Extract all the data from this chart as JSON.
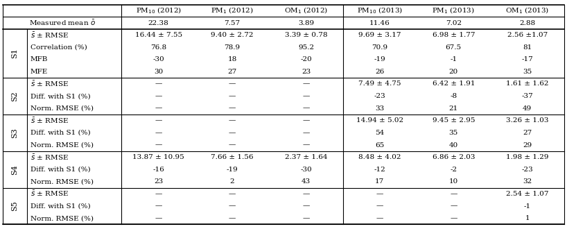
{
  "col_headers": [
    "PM$_{10}$ (2012)",
    "PM$_1$ (2012)",
    "OM$_1$ (2012)",
    "PM$_{10}$ (2013)",
    "PM$_1$ (2013)",
    "OM$_1$ (2013)"
  ],
  "measured_mean_label": "Measured mean $\\bar{o}$",
  "measured_mean_values": [
    "22.38",
    "7.57",
    "3.89",
    "11.46",
    "7.02",
    "2.88"
  ],
  "row_groups": [
    {
      "label": "S1",
      "rows": [
        [
          "$\\bar{s}$ ± RMSE",
          "16.44 ± 7.55",
          "9.40 ± 2.72",
          "3.39 ± 0.78",
          "9.69 ± 3.17",
          "6.98 ± 1.77",
          "2.56 ±1.07"
        ],
        [
          "Correlation (%)",
          "76.8",
          "78.9",
          "95.2",
          "70.9",
          "67.5",
          "81"
        ],
        [
          "MFB",
          "-30",
          "18",
          "-20",
          "-19",
          "-1",
          "-17"
        ],
        [
          "MFE",
          "30",
          "27",
          "23",
          "26",
          "20",
          "35"
        ]
      ]
    },
    {
      "label": "S2",
      "rows": [
        [
          "$\\bar{s}$ ± RMSE",
          "—",
          "—",
          "—",
          "7.49 ± 4.75",
          "6.42 ± 1.91",
          "1.61 ± 1.62"
        ],
        [
          "Diff. with S1 (%)",
          "—",
          "—",
          "—",
          "-23",
          "-8",
          "-37"
        ],
        [
          "Norm. RMSE (%)",
          "—",
          "—",
          "—",
          "33",
          "21",
          "49"
        ]
      ]
    },
    {
      "label": "S3",
      "rows": [
        [
          "$\\bar{s}$ ± RMSE",
          "—",
          "—",
          "—",
          "14.94 ± 5.02",
          "9.45 ± 2.95",
          "3.26 ± 1.03"
        ],
        [
          "Diff. with S1 (%)",
          "—",
          "—",
          "—",
          "54",
          "35",
          "27"
        ],
        [
          "Norm. RMSE (%)",
          "—",
          "—",
          "—",
          "65",
          "40",
          "29"
        ]
      ]
    },
    {
      "label": "S4",
      "rows": [
        [
          "$\\bar{s}$ ± RMSE",
          "13.87 ± 10.95",
          "7.66 ± 1.56",
          "2.37 ± 1.64",
          "8.48 ± 4.02",
          "6.86 ± 2.03",
          "1.98 ± 1.29"
        ],
        [
          "Diff. with S1 (%)",
          "-16",
          "-19",
          "-30",
          "-12",
          "-2",
          "-23"
        ],
        [
          "Norm. RMSE (%)",
          "23",
          "2",
          "43",
          "17",
          "10",
          "32"
        ]
      ]
    },
    {
      "label": "S5",
      "rows": [
        [
          "$\\bar{s}$ ± RMSE",
          "—",
          "—",
          "—",
          "—",
          "—",
          "2.54 ± 1.07"
        ],
        [
          "Diff. with S1 (%)",
          "—",
          "—",
          "—",
          "—",
          "—",
          "-1"
        ],
        [
          "Norm. RMSE (%)",
          "—",
          "—",
          "—",
          "—",
          "—",
          "1"
        ]
      ]
    }
  ],
  "font_size": 7.5,
  "fig_width": 8.18,
  "fig_height": 3.3,
  "dpi": 100
}
